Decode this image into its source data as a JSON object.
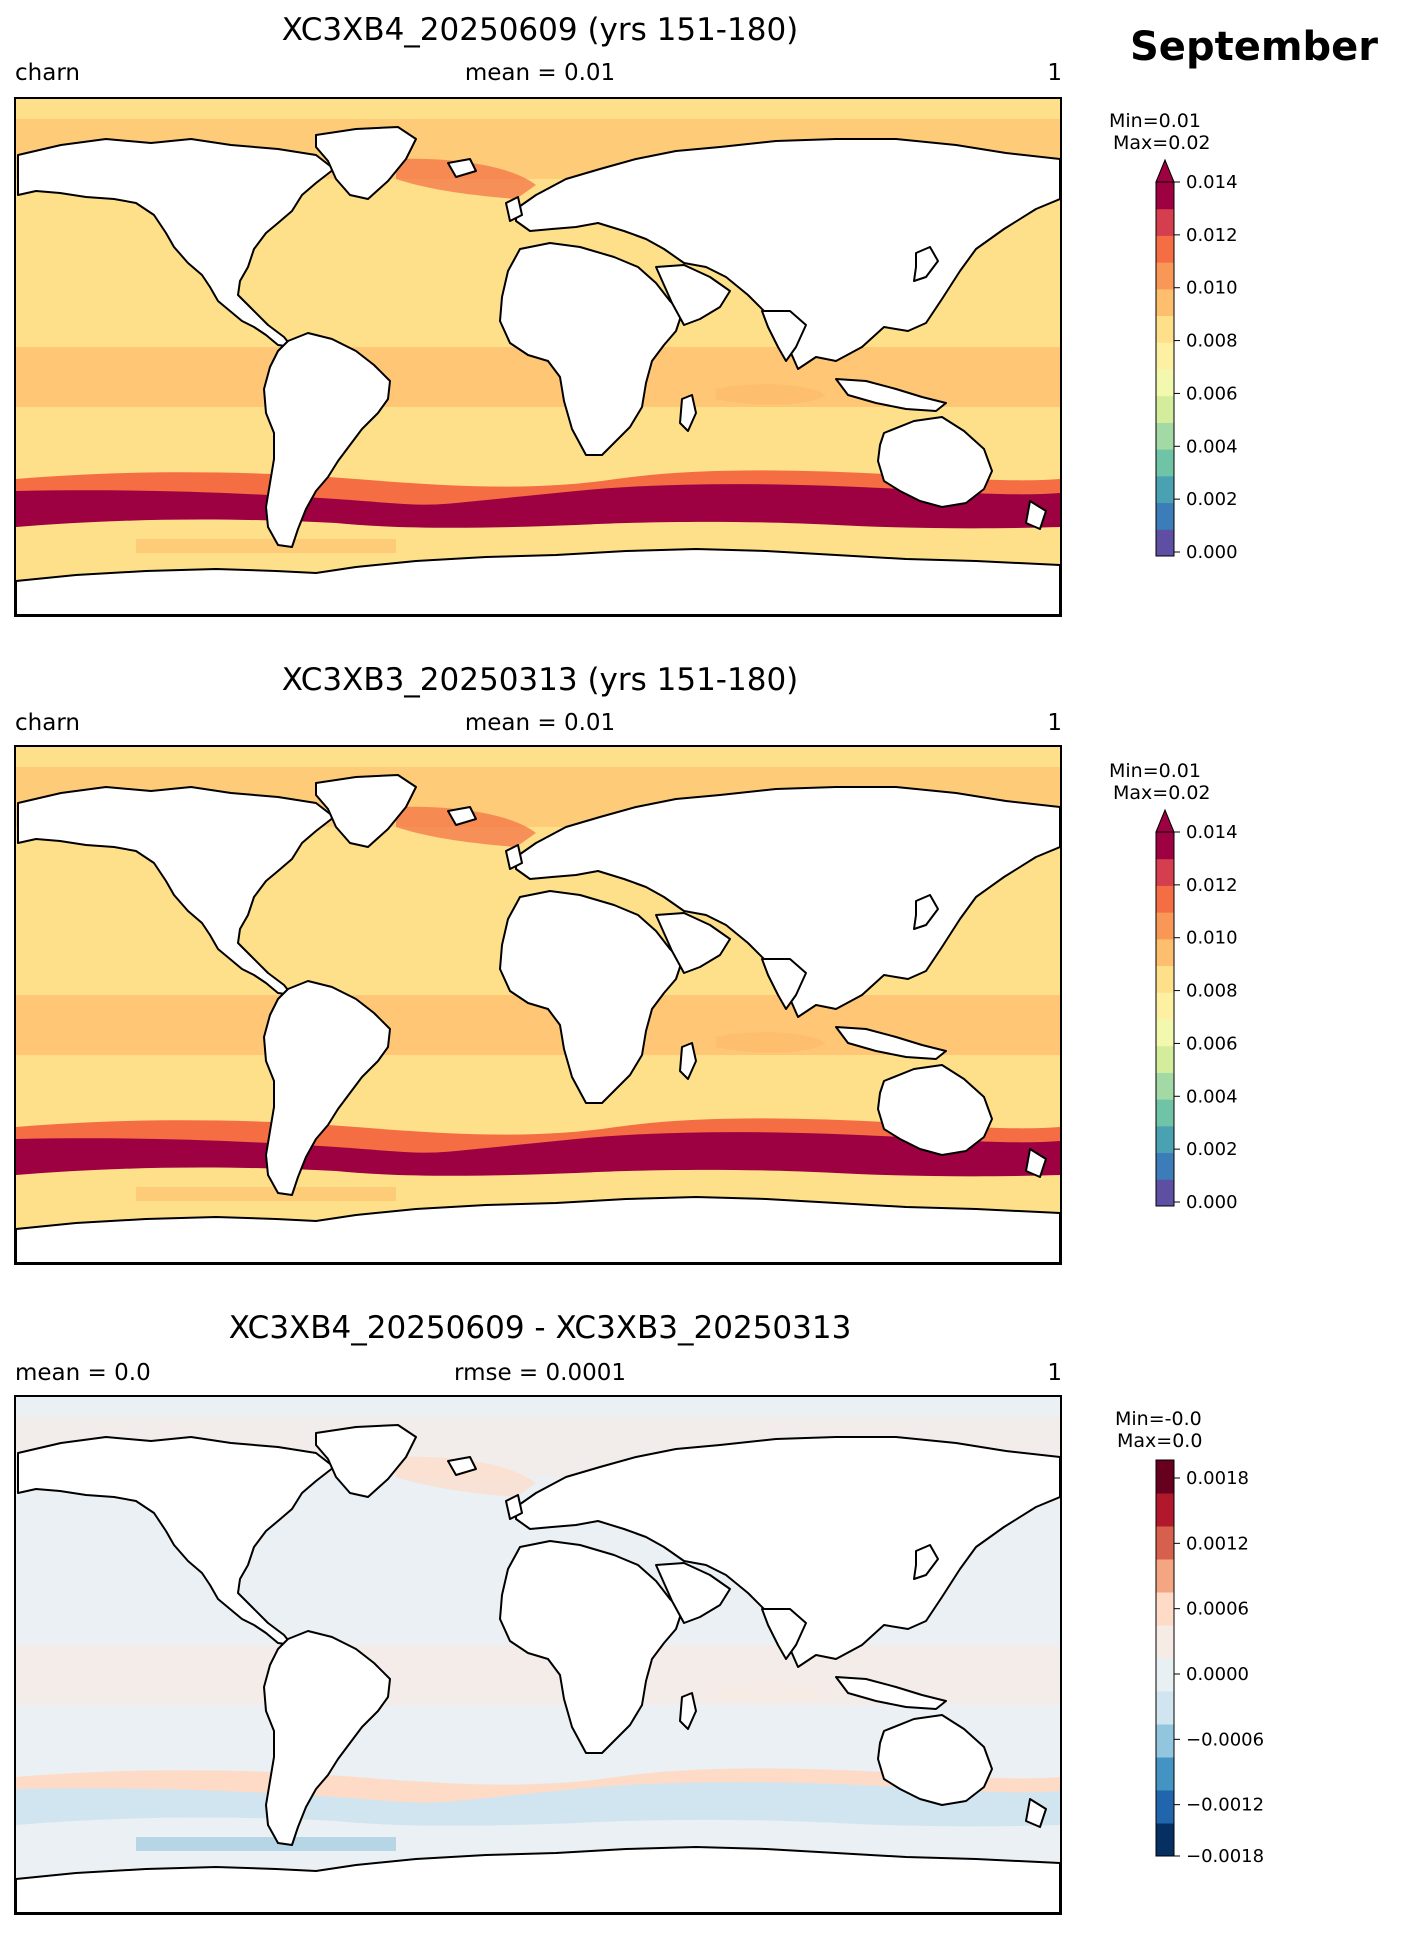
{
  "month": "September",
  "palettes": {
    "seq": [
      "#5e4fa2",
      "#3c7db9",
      "#4aa1b1",
      "#6fc3a6",
      "#a3d9a4",
      "#d4ed9c",
      "#f2f9ae",
      "#fdf0a3",
      "#fee08b",
      "#fdbe6e",
      "#f99757",
      "#f46d43",
      "#d53e4f",
      "#9e0142"
    ],
    "div": [
      "#053061",
      "#2166ac",
      "#4393c3",
      "#92c5de",
      "#d1e5f0",
      "#e8f0f4",
      "#f7ebe5",
      "#fddbc7",
      "#f4a582",
      "#d6604d",
      "#b2182b",
      "#67001f"
    ]
  },
  "panels": [
    {
      "title": "XC3XB4_20250609 (yrs 151-180)",
      "left_label": "charn",
      "center_label": "mean = 0.01",
      "right_label": "1",
      "stats": {
        "min": "Min=0.01",
        "max": "Max=0.02"
      },
      "colorbar": {
        "palette": "seq",
        "vmin": 0.0,
        "vmax": 0.015,
        "extend": "max",
        "ticks": [
          "0.014",
          "0.012",
          "0.010",
          "0.008",
          "0.006",
          "0.004",
          "0.002",
          "0.000"
        ]
      },
      "field": {
        "ocean": "#fee08b",
        "storm": "#9e0142",
        "storm_edge": "#f46d43",
        "band": "#fdbe6e",
        "subtle": "#fdbe6e"
      }
    },
    {
      "title": "XC3XB3_20250313 (yrs 151-180)",
      "left_label": "charn",
      "center_label": "mean = 0.01",
      "right_label": "1",
      "stats": {
        "min": "Min=0.01",
        "max": "Max=0.02"
      },
      "colorbar": {
        "palette": "seq",
        "vmin": 0.0,
        "vmax": 0.015,
        "extend": "max",
        "ticks": [
          "0.014",
          "0.012",
          "0.010",
          "0.008",
          "0.006",
          "0.004",
          "0.002",
          "0.000"
        ]
      },
      "field": {
        "ocean": "#fee08b",
        "storm": "#9e0142",
        "storm_edge": "#f46d43",
        "band": "#fdbe6e",
        "subtle": "#fdbe6e"
      }
    },
    {
      "title": "XC3XB4_20250609 - XC3XB3_20250313",
      "left_label": "mean = 0.0",
      "center_label": "rmse = 0.0001",
      "right_label": "1",
      "stats": {
        "min": "Min=-0.0",
        "max": "Max=0.0"
      },
      "colorbar": {
        "palette": "div",
        "vmin": -0.002,
        "vmax": 0.002,
        "extend": "none",
        "ticks": [
          "0.0018",
          "0.0012",
          "0.0006",
          "0.0000",
          "−0.0006",
          "−0.0012",
          "−0.0018"
        ]
      },
      "field": {
        "ocean": "#eaf0f3",
        "storm": "#d1e5f0",
        "storm_edge": "#fddbc7",
        "band": "#f7ebe5",
        "subtle": "#92c5de"
      }
    }
  ]
}
